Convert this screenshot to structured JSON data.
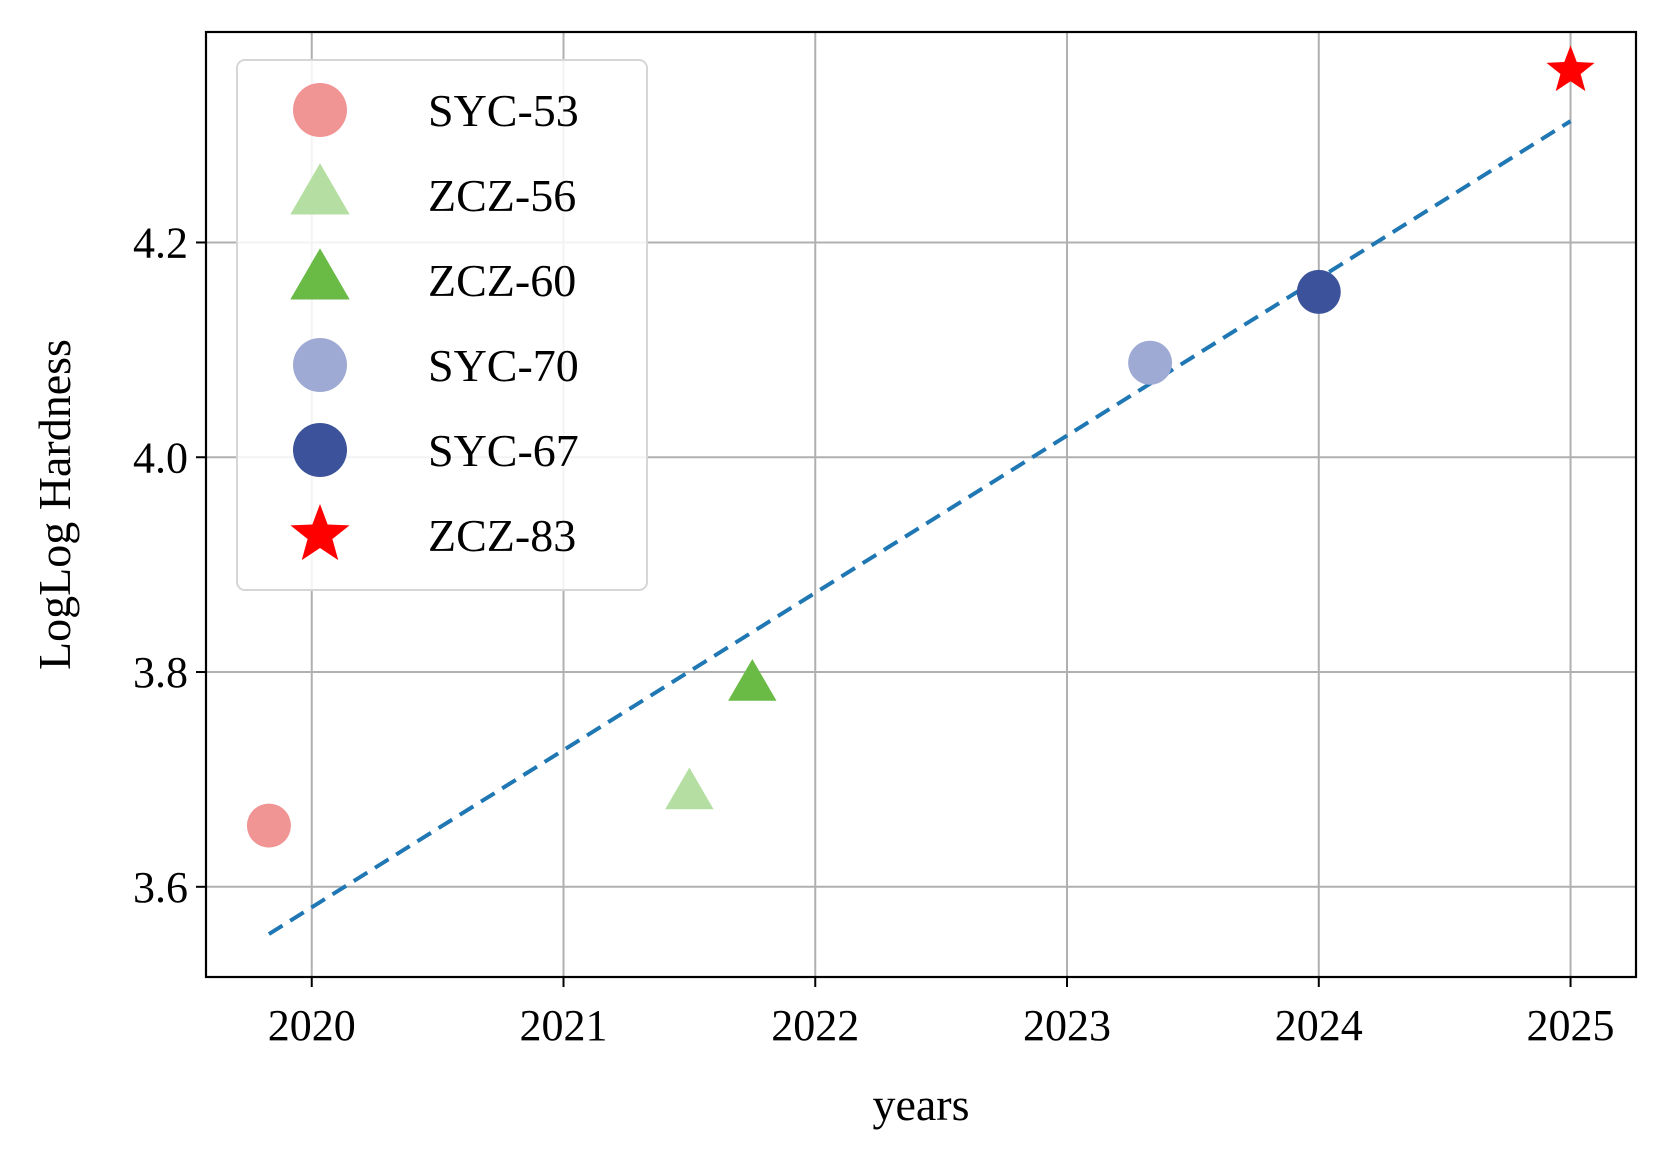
{
  "chart_data": {
    "type": "scatter",
    "xlabel": "years",
    "ylabel": "LogLog Hardness",
    "xlim": [
      2019.58,
      2025.26
    ],
    "ylim": [
      3.516,
      4.396
    ],
    "x_ticks": [
      2020,
      2021,
      2022,
      2023,
      2024,
      2025
    ],
    "x_tick_labels": [
      "2020",
      "2021",
      "2022",
      "2023",
      "2024",
      "2025"
    ],
    "y_ticks": [
      3.6,
      3.8,
      4.0,
      4.2
    ],
    "y_tick_labels": [
      "3.6",
      "3.8",
      "4.0",
      "4.2"
    ],
    "grid": true,
    "legend_position": "top-left",
    "series": [
      {
        "name": "SYC-53",
        "marker": "circle",
        "color": "#f09494",
        "x": 2019.83,
        "y": 3.657
      },
      {
        "name": "ZCZ-56",
        "marker": "triangle",
        "color": "#b5dfa2",
        "x": 2021.5,
        "y": 3.687
      },
      {
        "name": "ZCZ-60",
        "marker": "triangle",
        "color": "#6aba46",
        "x": 2021.75,
        "y": 3.788
      },
      {
        "name": "SYC-70",
        "marker": "circle",
        "color": "#9eaad3",
        "x": 2023.33,
        "y": 4.088
      },
      {
        "name": "SYC-67",
        "marker": "circle",
        "color": "#3c539b",
        "x": 2024.0,
        "y": 4.154
      },
      {
        "name": "ZCZ-83",
        "marker": "star",
        "color": "#ff0000",
        "x": 2025.0,
        "y": 4.36
      }
    ],
    "trend_line": {
      "style": "dashed",
      "color": "#1f77b4",
      "x": [
        2019.83,
        2025.0
      ],
      "y": [
        3.556,
        4.313
      ]
    }
  }
}
